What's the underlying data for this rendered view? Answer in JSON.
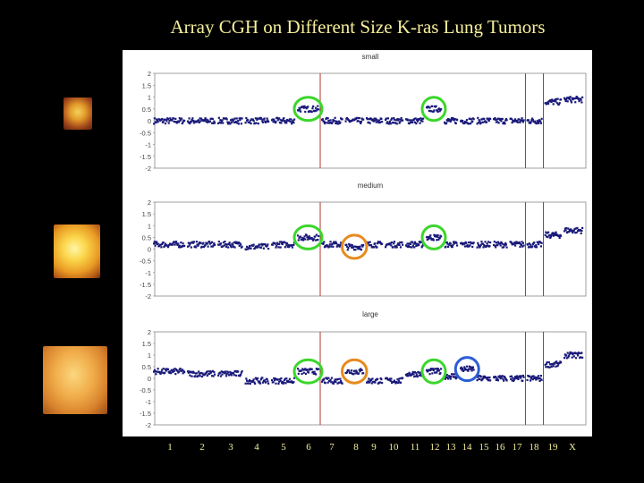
{
  "slide": {
    "title": "Array CGH on Different Size K-ras Lung Tumors"
  },
  "images": [
    {
      "name": "small tumor photo",
      "color": "#e39a2a"
    },
    {
      "name": "medium tumor photo",
      "color": "#fbd54a"
    },
    {
      "name": "large tumor photo",
      "color": "#f1ad4a"
    }
  ],
  "colors": {
    "background": "#000000",
    "title_text": "#f5ef9a",
    "points": "#1a1a7a",
    "chromosome_dividers": "#b03a2e",
    "circle_green": "#3bd62c",
    "circle_orange": "#e88a1e",
    "circle_blue": "#2c5ed6"
  },
  "chart_data": [
    {
      "type": "scatter",
      "title": "small",
      "xlabel": "",
      "ylabel": "",
      "yticks": [
        "2",
        "1.5",
        "1",
        "0.5",
        "0",
        "-0.5",
        "-1",
        "-1.5",
        "-2"
      ],
      "ylim": [
        -2,
        2
      ],
      "x_categories": [
        "1",
        "2",
        "3",
        "4",
        "5",
        "6",
        "7",
        "8",
        "9",
        "10",
        "11",
        "12",
        "13",
        "14",
        "15",
        "16",
        "17",
        "18",
        "19",
        "X"
      ],
      "segments": [
        {
          "chromosome": "1",
          "log2_ratio": 0.0
        },
        {
          "chromosome": "2",
          "log2_ratio": 0.0
        },
        {
          "chromosome": "3",
          "log2_ratio": 0.0
        },
        {
          "chromosome": "4",
          "log2_ratio": 0.0
        },
        {
          "chromosome": "5",
          "log2_ratio": 0.0
        },
        {
          "chromosome": "6",
          "log2_ratio": 0.5
        },
        {
          "chromosome": "7",
          "log2_ratio": 0.0
        },
        {
          "chromosome": "8",
          "log2_ratio": 0.0
        },
        {
          "chromosome": "9",
          "log2_ratio": 0.0
        },
        {
          "chromosome": "10",
          "log2_ratio": 0.0
        },
        {
          "chromosome": "11",
          "log2_ratio": 0.0
        },
        {
          "chromosome": "12",
          "log2_ratio": 0.5
        },
        {
          "chromosome": "13",
          "log2_ratio": 0.0
        },
        {
          "chromosome": "14",
          "log2_ratio": 0.0
        },
        {
          "chromosome": "15",
          "log2_ratio": 0.0
        },
        {
          "chromosome": "16",
          "log2_ratio": 0.0
        },
        {
          "chromosome": "17",
          "log2_ratio": 0.0
        },
        {
          "chromosome": "18",
          "log2_ratio": 0.0
        },
        {
          "chromosome": "19",
          "log2_ratio": 0.8
        },
        {
          "chromosome": "X",
          "log2_ratio": 0.9
        }
      ],
      "highlights": [
        {
          "chromosome": "6",
          "color": "green"
        },
        {
          "chromosome": "12",
          "color": "green"
        }
      ]
    },
    {
      "type": "scatter",
      "title": "medium",
      "xlabel": "",
      "ylabel": "",
      "yticks": [
        "2",
        "1.5",
        "1",
        "0.5",
        "0",
        "-0.5",
        "-1",
        "-1.5",
        "-2"
      ],
      "ylim": [
        -2,
        2
      ],
      "x_categories": [
        "1",
        "2",
        "3",
        "4",
        "5",
        "6",
        "7",
        "8",
        "9",
        "10",
        "11",
        "12",
        "13",
        "14",
        "15",
        "16",
        "17",
        "18",
        "19",
        "X"
      ],
      "segments": [
        {
          "chromosome": "1",
          "log2_ratio": 0.2
        },
        {
          "chromosome": "2",
          "log2_ratio": 0.2
        },
        {
          "chromosome": "3",
          "log2_ratio": 0.2
        },
        {
          "chromosome": "4",
          "log2_ratio": 0.1
        },
        {
          "chromosome": "5",
          "log2_ratio": 0.2
        },
        {
          "chromosome": "6",
          "log2_ratio": 0.5
        },
        {
          "chromosome": "7",
          "log2_ratio": 0.2
        },
        {
          "chromosome": "8",
          "log2_ratio": 0.1
        },
        {
          "chromosome": "9",
          "log2_ratio": 0.2
        },
        {
          "chromosome": "10",
          "log2_ratio": 0.2
        },
        {
          "chromosome": "11",
          "log2_ratio": 0.2
        },
        {
          "chromosome": "12",
          "log2_ratio": 0.5
        },
        {
          "chromosome": "13",
          "log2_ratio": 0.2
        },
        {
          "chromosome": "14",
          "log2_ratio": 0.2
        },
        {
          "chromosome": "15",
          "log2_ratio": 0.2
        },
        {
          "chromosome": "16",
          "log2_ratio": 0.2
        },
        {
          "chromosome": "17",
          "log2_ratio": 0.2
        },
        {
          "chromosome": "18",
          "log2_ratio": 0.2
        },
        {
          "chromosome": "19",
          "log2_ratio": 0.6
        },
        {
          "chromosome": "X",
          "log2_ratio": 0.8
        }
      ],
      "highlights": [
        {
          "chromosome": "6",
          "color": "green"
        },
        {
          "chromosome": "8",
          "color": "orange"
        },
        {
          "chromosome": "12",
          "color": "green"
        }
      ]
    },
    {
      "type": "scatter",
      "title": "large",
      "xlabel": "",
      "ylabel": "",
      "yticks": [
        "2",
        "1.5",
        "1",
        "0.5",
        "0",
        "-0.5",
        "-1",
        "-1.5",
        "-2"
      ],
      "ylim": [
        -2,
        2
      ],
      "x_categories": [
        "1",
        "2",
        "3",
        "4",
        "5",
        "6",
        "7",
        "8",
        "9",
        "10",
        "11",
        "12",
        "13",
        "14",
        "15",
        "16",
        "17",
        "18",
        "19",
        "X"
      ],
      "segments": [
        {
          "chromosome": "1",
          "log2_ratio": 0.3
        },
        {
          "chromosome": "2",
          "log2_ratio": 0.2
        },
        {
          "chromosome": "3",
          "log2_ratio": 0.2
        },
        {
          "chromosome": "4",
          "log2_ratio": -0.1
        },
        {
          "chromosome": "5",
          "log2_ratio": -0.1
        },
        {
          "chromosome": "6",
          "log2_ratio": 0.3
        },
        {
          "chromosome": "7",
          "log2_ratio": -0.1
        },
        {
          "chromosome": "8",
          "log2_ratio": 0.3
        },
        {
          "chromosome": "9",
          "log2_ratio": -0.1
        },
        {
          "chromosome": "10",
          "log2_ratio": -0.1
        },
        {
          "chromosome": "11",
          "log2_ratio": 0.2
        },
        {
          "chromosome": "12",
          "log2_ratio": 0.3
        },
        {
          "chromosome": "13",
          "log2_ratio": 0.1
        },
        {
          "chromosome": "14",
          "log2_ratio": 0.4
        },
        {
          "chromosome": "15",
          "log2_ratio": 0.0
        },
        {
          "chromosome": "16",
          "log2_ratio": 0.0
        },
        {
          "chromosome": "17",
          "log2_ratio": 0.0
        },
        {
          "chromosome": "18",
          "log2_ratio": 0.0
        },
        {
          "chromosome": "19",
          "log2_ratio": 0.6
        },
        {
          "chromosome": "X",
          "log2_ratio": 1.0
        }
      ],
      "highlights": [
        {
          "chromosome": "6",
          "color": "green"
        },
        {
          "chromosome": "8",
          "color": "orange"
        },
        {
          "chromosome": "12",
          "color": "green"
        },
        {
          "chromosome": "14",
          "color": "blue"
        }
      ]
    }
  ],
  "x_axis_labels": [
    "1",
    "2",
    "3",
    "4",
    "5",
    "6",
    "7",
    "8",
    "9",
    "10",
    "11",
    "12",
    "13",
    "14",
    "15",
    "16",
    "17",
    "18",
    "19",
    "X"
  ]
}
